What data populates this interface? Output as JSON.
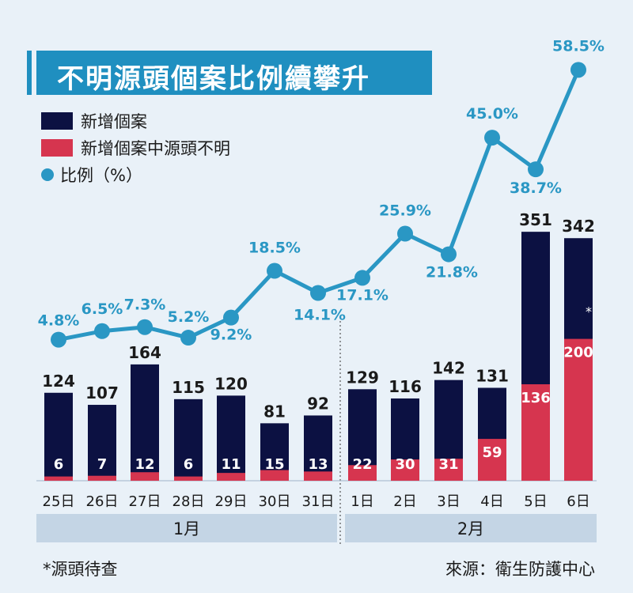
{
  "title": "不明源頭個案比例續攀升",
  "legend": {
    "total": "新增個案",
    "unknown": "新增個案中源頭不明",
    "ratio": "比例（%）"
  },
  "months": {
    "jan": "1月",
    "feb": "2月"
  },
  "footnote": "*源頭待查",
  "source": "來源：衛生防護中心",
  "colors": {
    "total": "#0c1142",
    "unknown": "#d6354f",
    "ratio": "#2a97c4",
    "title_bg": "#1f8fc0",
    "background": "#e9f1f8",
    "month_band": "#c4d5e5"
  },
  "chart_data": {
    "type": "bar",
    "categories": [
      "25日",
      "26日",
      "27日",
      "28日",
      "29日",
      "30日",
      "31日",
      "1日",
      "2日",
      "3日",
      "4日",
      "5日",
      "6日"
    ],
    "series": [
      {
        "name": "新增個案",
        "type": "bar",
        "values": [
          124,
          107,
          164,
          115,
          120,
          81,
          92,
          129,
          116,
          142,
          131,
          351,
          342
        ]
      },
      {
        "name": "新增個案中源頭不明",
        "type": "bar",
        "values": [
          6,
          7,
          12,
          6,
          11,
          15,
          13,
          22,
          30,
          31,
          59,
          136,
          200
        ]
      },
      {
        "name": "比例（%）",
        "type": "line",
        "values": [
          4.8,
          6.5,
          7.3,
          5.2,
          9.2,
          18.5,
          14.1,
          17.1,
          25.9,
          21.8,
          45.0,
          38.7,
          58.5
        ],
        "labels": [
          "4.8%",
          "6.5%",
          "7.3%",
          "5.2%",
          "9.2%",
          "18.5%",
          "14.1%",
          "17.1%",
          "25.9%",
          "21.8%",
          "45.0%",
          "38.7%",
          "58.5%"
        ]
      }
    ],
    "annotations": [
      {
        "category": "6日",
        "text": "*"
      }
    ],
    "grid": false
  }
}
